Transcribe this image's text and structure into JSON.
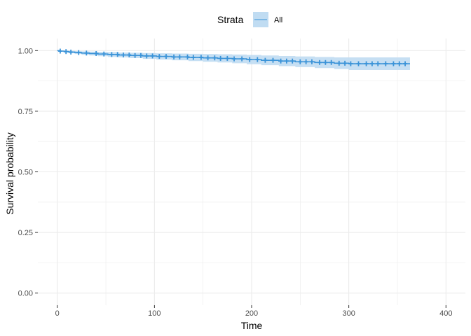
{
  "chart_data": {
    "type": "line",
    "subtype": "kaplan-meier",
    "title": "",
    "xlabel": "Time",
    "ylabel": "Survival probability",
    "xlim": [
      -20,
      420
    ],
    "ylim": [
      -0.05,
      1.05
    ],
    "xticks": [
      0,
      100,
      200,
      300,
      400
    ],
    "xtick_labels": [
      "0",
      "100",
      "200",
      "300",
      "400"
    ],
    "yticks": [
      0,
      0.25,
      0.5,
      0.75,
      1.0
    ],
    "ytick_labels": [
      "0.00",
      "0.25",
      "0.50",
      "0.75",
      "1.00"
    ],
    "grid": true,
    "legend": {
      "position": "top",
      "title": "Strata",
      "entries": [
        "All"
      ]
    },
    "colors": {
      "line": "#3a93d8",
      "band": "#c0dcf2",
      "grid": "#ebebeb"
    },
    "series": [
      {
        "name": "All",
        "step_x": [
          0,
          3,
          7,
          12,
          18,
          25,
          33,
          42,
          52,
          63,
          75,
          88,
          102,
          118,
          135,
          150,
          165,
          180,
          195,
          210,
          228,
          245,
          265,
          285,
          300,
          363
        ],
        "step_y": [
          1.0,
          0.998,
          0.996,
          0.994,
          0.992,
          0.99,
          0.988,
          0.986,
          0.984,
          0.982,
          0.98,
          0.978,
          0.976,
          0.974,
          0.972,
          0.97,
          0.968,
          0.966,
          0.963,
          0.96,
          0.957,
          0.954,
          0.951,
          0.948,
          0.946,
          0.946
        ],
        "lower": [
          1.0,
          0.996,
          0.992,
          0.989,
          0.986,
          0.983,
          0.98,
          0.977,
          0.974,
          0.972,
          0.969,
          0.966,
          0.963,
          0.96,
          0.957,
          0.954,
          0.951,
          0.948,
          0.944,
          0.94,
          0.936,
          0.932,
          0.928,
          0.924,
          0.92,
          0.92
        ],
        "upper": [
          1.0,
          1.0,
          1.0,
          0.999,
          0.998,
          0.997,
          0.996,
          0.995,
          0.994,
          0.992,
          0.991,
          0.99,
          0.989,
          0.988,
          0.987,
          0.986,
          0.985,
          0.984,
          0.982,
          0.98,
          0.978,
          0.976,
          0.974,
          0.972,
          0.972,
          0.972
        ],
        "censor_x": [
          3,
          9,
          14,
          22,
          30,
          40,
          48,
          56,
          62,
          68,
          74,
          80,
          86,
          92,
          98,
          105,
          112,
          120,
          126,
          134,
          140,
          148,
          155,
          162,
          168,
          175,
          182,
          190,
          198,
          206,
          214,
          222,
          230,
          236,
          242,
          250,
          256,
          262,
          270,
          276,
          282,
          290,
          296,
          302,
          310,
          318,
          324,
          330,
          338,
          346,
          352,
          358
        ]
      }
    ]
  }
}
